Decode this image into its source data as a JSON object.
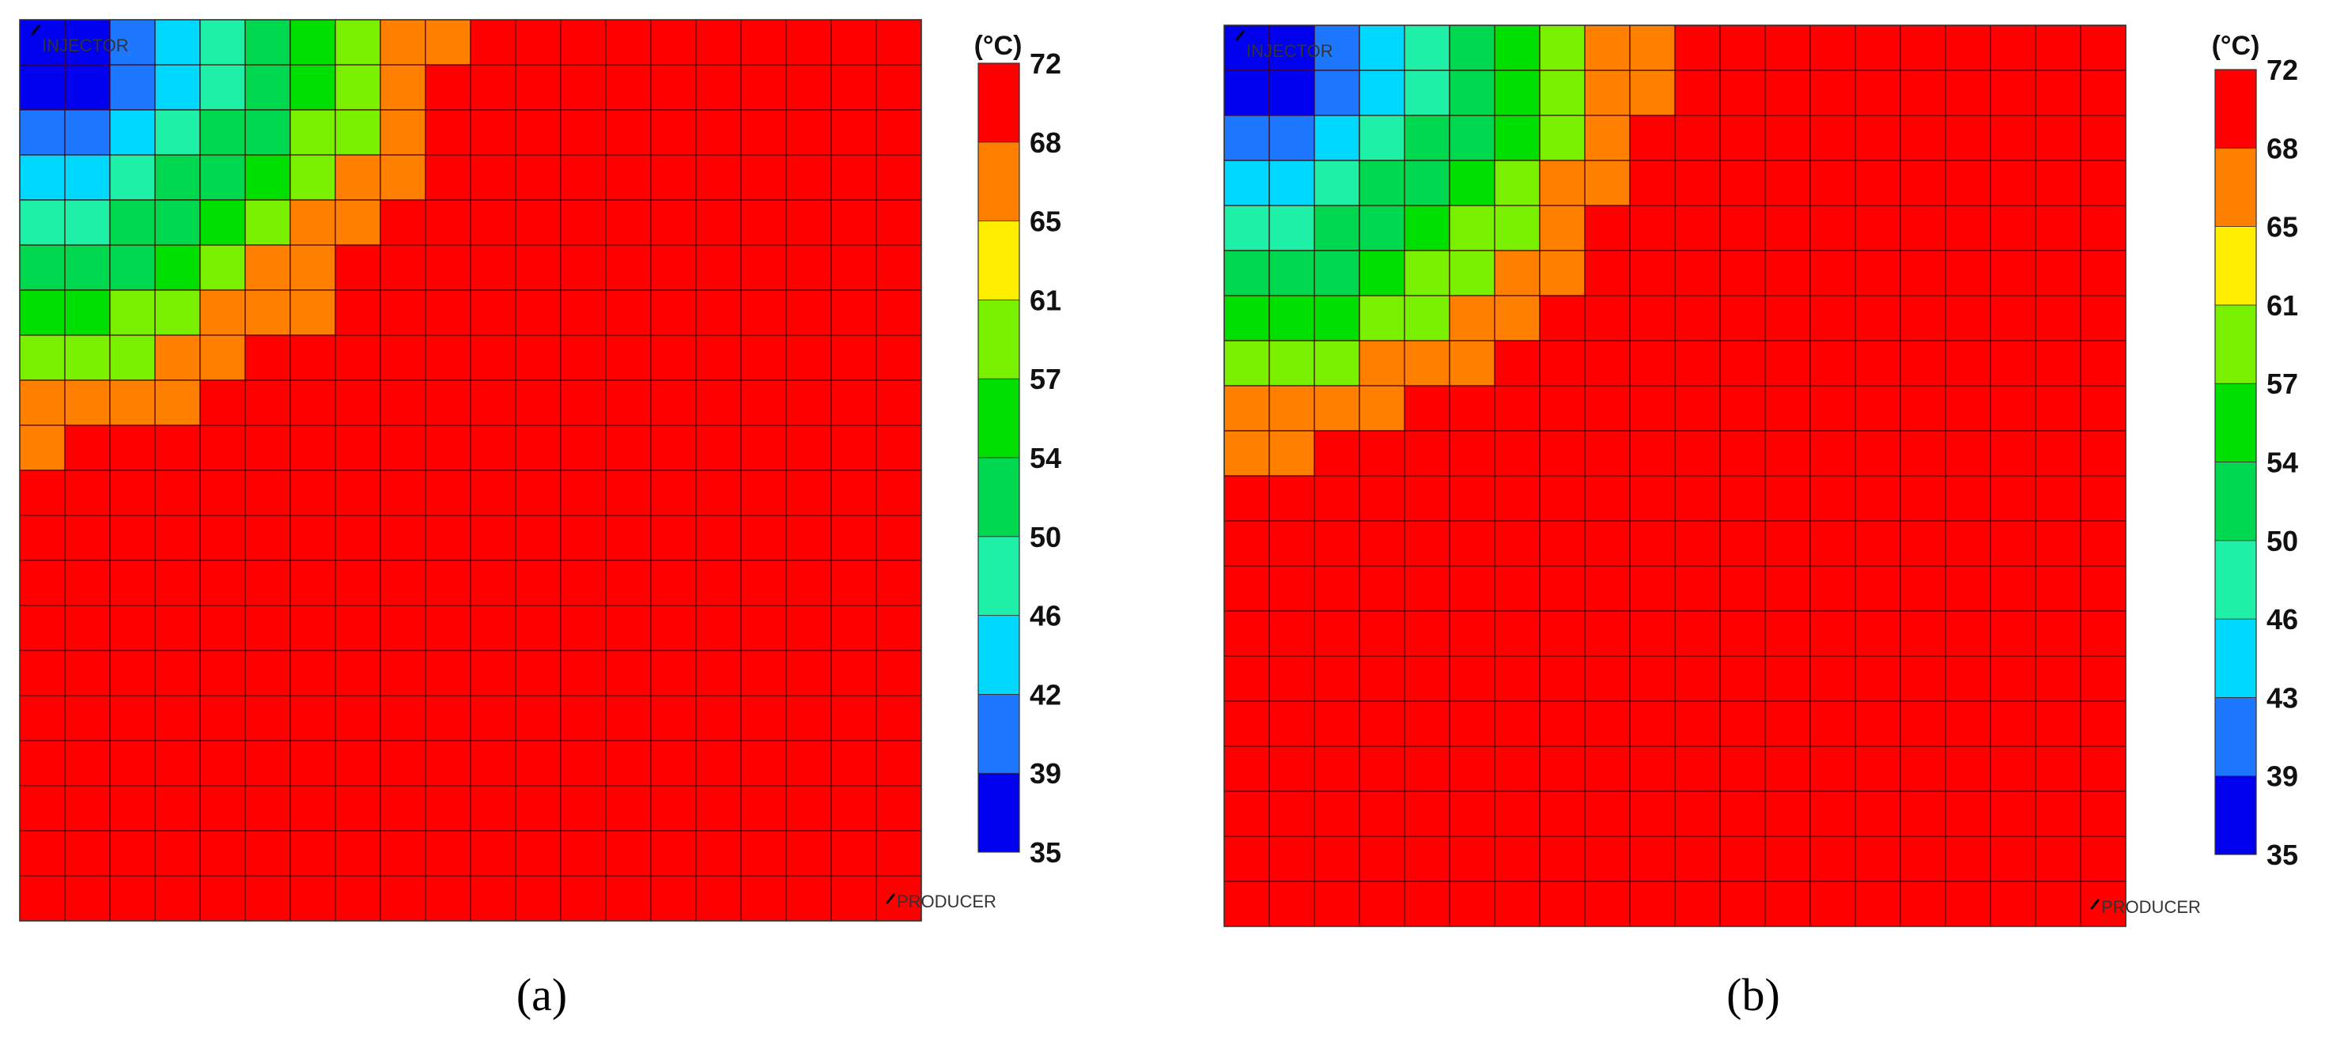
{
  "chart_data": [
    {
      "type": "heatmap",
      "panel_label": "(a)",
      "unit_label": "(°C)",
      "grid": {
        "rows": 20,
        "cols": 20
      },
      "wells": [
        {
          "name": "INJECTOR",
          "row": 0,
          "col": 0
        },
        {
          "name": "PRODUCER",
          "row": 19,
          "col": 19
        }
      ],
      "colorbar": {
        "ticks": [
          "35",
          "39",
          "42",
          "46",
          "50",
          "54",
          "57",
          "61",
          "65",
          "68",
          "72"
        ],
        "colors": [
          "#0000ee",
          "#1e78ff",
          "#00d8ff",
          "#1ef0a8",
          "#00d850",
          "#00e000",
          "#78f000",
          "#ffee00",
          "#ff8000",
          "#ff0000"
        ]
      },
      "bands": [
        {
          "row": 0,
          "levels": [
            0,
            0,
            1,
            2,
            3,
            4,
            5,
            6,
            8,
            8
          ]
        },
        {
          "row": 1,
          "levels": [
            0,
            0,
            1,
            2,
            3,
            4,
            5,
            6,
            8
          ]
        },
        {
          "row": 2,
          "levels": [
            1,
            1,
            2,
            3,
            4,
            4,
            6,
            6,
            8
          ]
        },
        {
          "row": 3,
          "levels": [
            2,
            2,
            3,
            4,
            4,
            5,
            6,
            8,
            8
          ]
        },
        {
          "row": 4,
          "levels": [
            3,
            3,
            4,
            4,
            5,
            6,
            8,
            8
          ]
        },
        {
          "row": 5,
          "levels": [
            4,
            4,
            4,
            5,
            6,
            8,
            8
          ]
        },
        {
          "row": 6,
          "levels": [
            5,
            5,
            6,
            6,
            8,
            8,
            8
          ]
        },
        {
          "row": 7,
          "levels": [
            6,
            6,
            6,
            8,
            8
          ]
        },
        {
          "row": 8,
          "levels": [
            8,
            8,
            8,
            8
          ]
        },
        {
          "row": 9,
          "levels": [
            8
          ]
        }
      ],
      "default_level": 9
    },
    {
      "type": "heatmap",
      "panel_label": "(b)",
      "unit_label": "(°C)",
      "grid": {
        "rows": 20,
        "cols": 20
      },
      "wells": [
        {
          "name": "INJECTOR",
          "row": 0,
          "col": 0
        },
        {
          "name": "PRODUCER",
          "row": 19,
          "col": 19
        }
      ],
      "colorbar": {
        "ticks": [
          "35",
          "39",
          "43",
          "46",
          "50",
          "54",
          "57",
          "61",
          "65",
          "68",
          "72"
        ],
        "colors": [
          "#0000ee",
          "#1e78ff",
          "#00d8ff",
          "#1ef0a8",
          "#00d850",
          "#00e000",
          "#78f000",
          "#ffee00",
          "#ff8000",
          "#ff0000"
        ]
      },
      "bands": [
        {
          "row": 0,
          "levels": [
            0,
            0,
            1,
            2,
            3,
            4,
            5,
            6,
            8,
            8
          ]
        },
        {
          "row": 1,
          "levels": [
            0,
            0,
            1,
            2,
            3,
            4,
            5,
            6,
            8,
            8
          ]
        },
        {
          "row": 2,
          "levels": [
            1,
            1,
            2,
            3,
            4,
            4,
            5,
            6,
            8
          ]
        },
        {
          "row": 3,
          "levels": [
            2,
            2,
            3,
            4,
            4,
            5,
            6,
            8,
            8
          ]
        },
        {
          "row": 4,
          "levels": [
            3,
            3,
            4,
            4,
            5,
            6,
            6,
            8
          ]
        },
        {
          "row": 5,
          "levels": [
            4,
            4,
            4,
            5,
            6,
            6,
            8,
            8
          ]
        },
        {
          "row": 6,
          "levels": [
            5,
            5,
            5,
            6,
            6,
            8,
            8
          ]
        },
        {
          "row": 7,
          "levels": [
            6,
            6,
            6,
            8,
            8,
            8
          ]
        },
        {
          "row": 8,
          "levels": [
            8,
            8,
            8,
            8
          ]
        },
        {
          "row": 9,
          "levels": [
            8,
            8
          ]
        }
      ],
      "default_level": 9
    }
  ]
}
